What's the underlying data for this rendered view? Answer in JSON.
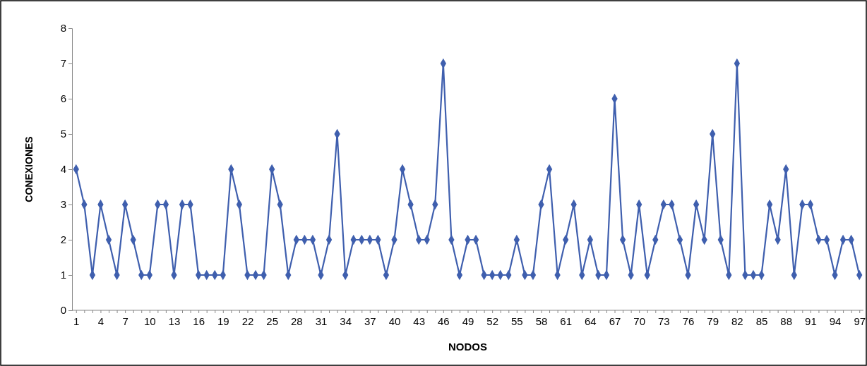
{
  "chart_data": {
    "type": "line",
    "xlabel": "NODOS",
    "ylabel": "CONEXIONES",
    "categories": [
      "1",
      null,
      null,
      "4",
      null,
      null,
      "7",
      null,
      null,
      "10",
      null,
      null,
      "13",
      null,
      null,
      "16",
      null,
      null,
      "19",
      null,
      null,
      "22",
      null,
      null,
      "25",
      null,
      null,
      "28",
      null,
      null,
      "31",
      null,
      null,
      "34",
      null,
      null,
      "37",
      null,
      null,
      "40",
      null,
      null,
      "43",
      null,
      null,
      "46",
      null,
      null,
      "49",
      null,
      null,
      "52",
      null,
      null,
      "55",
      null,
      null,
      "58",
      null,
      null,
      "61",
      null,
      null,
      "64",
      null,
      null,
      "67",
      null,
      null,
      "70",
      null,
      null,
      "73",
      null,
      null,
      "76",
      null,
      null,
      "79",
      null,
      null,
      "82",
      null,
      null,
      "85",
      null,
      null,
      "88",
      null,
      null,
      "91",
      null,
      null,
      "94",
      null,
      null,
      "97"
    ],
    "series": [
      {
        "color": "#3f5fae",
        "values": [
          4,
          3,
          1,
          3,
          2,
          1,
          3,
          2,
          1,
          1,
          3,
          3,
          1,
          3,
          3,
          1,
          1,
          1,
          1,
          4,
          3,
          1,
          1,
          1,
          4,
          3,
          1,
          2,
          2,
          2,
          1,
          2,
          5,
          1,
          2,
          2,
          2,
          2,
          1,
          2,
          4,
          3,
          2,
          2,
          3,
          7,
          2,
          1,
          2,
          2,
          1,
          1,
          1,
          1,
          2,
          1,
          1,
          3,
          4,
          1,
          2,
          3,
          1,
          2,
          1,
          1,
          6,
          2,
          1,
          3,
          1,
          2,
          3,
          3,
          2,
          1,
          3,
          2,
          5,
          2,
          1,
          7,
          1,
          1,
          1,
          3,
          2,
          4,
          1,
          3,
          3,
          2,
          2,
          1,
          2,
          2,
          1
        ]
      }
    ],
    "ylim": [
      0,
      8
    ],
    "yticks": [
      0,
      1,
      2,
      3,
      4,
      5,
      6,
      7,
      8
    ],
    "grid": false,
    "marker": "diamond",
    "line_style": "solid"
  }
}
